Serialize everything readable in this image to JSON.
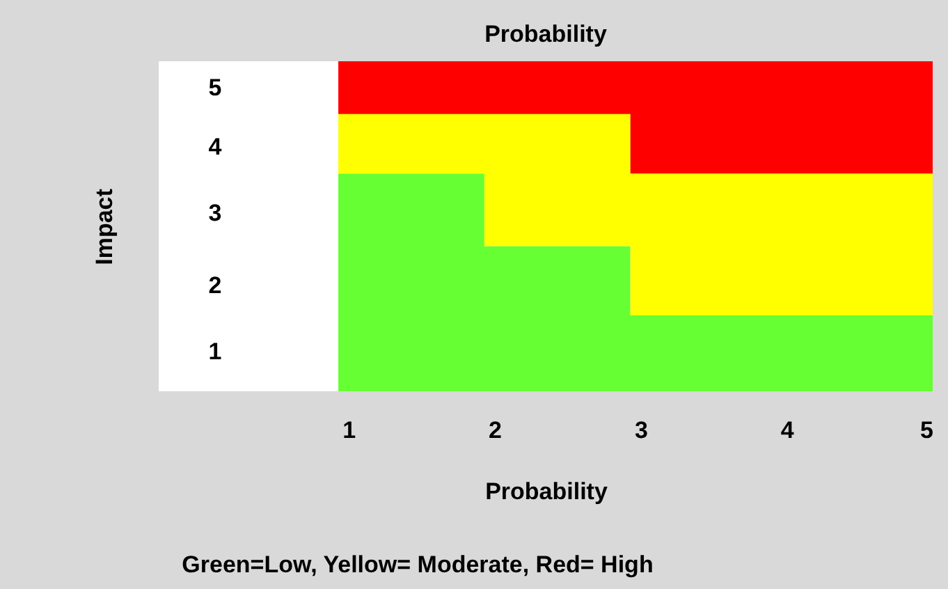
{
  "chart_data": {
    "type": "area",
    "stacked": true,
    "title": "Probability",
    "xlabel": "Probability",
    "ylabel": "Impact",
    "annotations": [
      "Green=Low, Yellow= Moderate, Red= High"
    ],
    "x": [
      0.93,
      1.93,
      2.93,
      5
    ],
    "series": [
      {
        "color": "#66ff33",
        "values": [
          3.3,
          2.2,
          1.15,
          1.15
        ]
      },
      {
        "color": "#ffff00",
        "values": [
          0.9,
          2.0,
          2.15,
          2.15
        ]
      },
      {
        "color": "#ff0000",
        "values": [
          0.8,
          0.8,
          1.7,
          1.7
        ]
      }
    ],
    "xlim": [
      -0.3,
      5
    ],
    "xticks": [
      1,
      2,
      3,
      4,
      5
    ],
    "ylim": [
      0,
      5
    ],
    "yticks": [
      {
        "value": 0.6,
        "label": "1"
      },
      {
        "value": 1.6,
        "label": "2"
      },
      {
        "value": 2.7,
        "label": "3"
      },
      {
        "value": 3.7,
        "label": "4"
      },
      {
        "value": 4.6,
        "label": "5"
      }
    ],
    "grid": false,
    "legend": false
  }
}
